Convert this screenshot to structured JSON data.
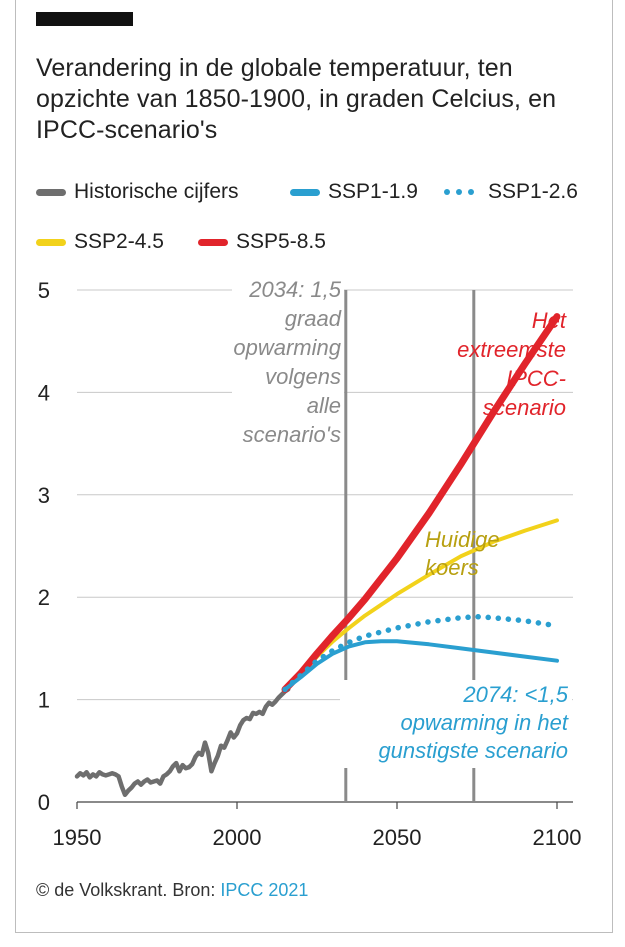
{
  "title": "Verandering in de globale temperatuur, ten opzichte van 1850-1900, in graden Celcius, en IPCC-scenario's",
  "legend": [
    {
      "label": "Historische cijfers",
      "color": "#6e6e6e",
      "style": "solid"
    },
    {
      "label": "SSP1-1.9",
      "color": "#2a9fd0",
      "style": "solid"
    },
    {
      "label": "SSP1-2.6",
      "color": "#2a9fd0",
      "style": "dotted"
    },
    {
      "label": "SSP2-4.5",
      "color": "#f2d21b",
      "style": "solid"
    },
    {
      "label": "SSP5-8.5",
      "color": "#e1242b",
      "style": "solid"
    }
  ],
  "annotations": {
    "a2034": [
      "2034: 1,5",
      "graad",
      "opwarming",
      "volgens",
      "alle",
      "scenario's"
    ],
    "extreme": [
      "Het",
      "extreemste",
      "IPCC-",
      "scenario"
    ],
    "current": [
      "Huidige",
      "koers"
    ],
    "a2074": [
      "2074: <1,5",
      "opwarming in het",
      "gunstigste scenario"
    ]
  },
  "source": {
    "prefix": "© de Volkskrant. Bron: ",
    "link": "IPCC 2021"
  },
  "chart_data": {
    "type": "line",
    "xlim": [
      1950,
      2100
    ],
    "ylim": [
      0,
      5
    ],
    "x_ticks": [
      "1950",
      "2000",
      "2050",
      "2100"
    ],
    "y_ticks": [
      "0",
      "1",
      "2",
      "3",
      "4",
      "5"
    ],
    "grid": "horizontal",
    "legend_position": "top",
    "vertical_markers": [
      2034,
      2074
    ],
    "series": [
      {
        "name": "Historische cijfers",
        "color": "#6e6e6e",
        "style": "solid",
        "points": [
          [
            1950,
            0.25
          ],
          [
            1951,
            0.28
          ],
          [
            1952,
            0.26
          ],
          [
            1953,
            0.29
          ],
          [
            1954,
            0.24
          ],
          [
            1955,
            0.27
          ],
          [
            1956,
            0.25
          ],
          [
            1957,
            0.29
          ],
          [
            1958,
            0.27
          ],
          [
            1959,
            0.26
          ],
          [
            1960,
            0.27
          ],
          [
            1961,
            0.28
          ],
          [
            1962,
            0.27
          ],
          [
            1963,
            0.25
          ],
          [
            1964,
            0.15
          ],
          [
            1965,
            0.07
          ],
          [
            1966,
            0.11
          ],
          [
            1967,
            0.14
          ],
          [
            1968,
            0.18
          ],
          [
            1969,
            0.2
          ],
          [
            1970,
            0.17
          ],
          [
            1971,
            0.2
          ],
          [
            1972,
            0.22
          ],
          [
            1973,
            0.19
          ],
          [
            1974,
            0.2
          ],
          [
            1975,
            0.21
          ],
          [
            1976,
            0.18
          ],
          [
            1977,
            0.25
          ],
          [
            1978,
            0.27
          ],
          [
            1979,
            0.3
          ],
          [
            1980,
            0.35
          ],
          [
            1981,
            0.38
          ],
          [
            1982,
            0.3
          ],
          [
            1983,
            0.36
          ],
          [
            1984,
            0.33
          ],
          [
            1985,
            0.34
          ],
          [
            1986,
            0.37
          ],
          [
            1987,
            0.44
          ],
          [
            1988,
            0.48
          ],
          [
            1989,
            0.46
          ],
          [
            1990,
            0.58
          ],
          [
            1991,
            0.48
          ],
          [
            1992,
            0.3
          ],
          [
            1993,
            0.38
          ],
          [
            1994,
            0.45
          ],
          [
            1995,
            0.55
          ],
          [
            1996,
            0.53
          ],
          [
            1997,
            0.6
          ],
          [
            1998,
            0.68
          ],
          [
            1999,
            0.63
          ],
          [
            2000,
            0.67
          ],
          [
            2001,
            0.75
          ],
          [
            2002,
            0.8
          ],
          [
            2003,
            0.82
          ],
          [
            2004,
            0.81
          ],
          [
            2005,
            0.87
          ],
          [
            2006,
            0.86
          ],
          [
            2007,
            0.88
          ],
          [
            2008,
            0.86
          ],
          [
            2009,
            0.93
          ],
          [
            2010,
            0.97
          ],
          [
            2011,
            0.95
          ],
          [
            2012,
            0.98
          ],
          [
            2013,
            1.02
          ],
          [
            2014,
            1.05
          ],
          [
            2015,
            1.08
          ],
          [
            2016,
            1.1
          ]
        ]
      },
      {
        "name": "SSP1-1.9",
        "color": "#2a9fd0",
        "style": "solid",
        "points": [
          [
            2015,
            1.1
          ],
          [
            2020,
            1.22
          ],
          [
            2025,
            1.35
          ],
          [
            2030,
            1.45
          ],
          [
            2035,
            1.52
          ],
          [
            2040,
            1.56
          ],
          [
            2045,
            1.57
          ],
          [
            2050,
            1.57
          ],
          [
            2060,
            1.54
          ],
          [
            2070,
            1.5
          ],
          [
            2080,
            1.46
          ],
          [
            2090,
            1.42
          ],
          [
            2100,
            1.38
          ]
        ]
      },
      {
        "name": "SSP1-2.6",
        "color": "#2a9fd0",
        "style": "dotted",
        "points": [
          [
            2015,
            1.1
          ],
          [
            2020,
            1.24
          ],
          [
            2025,
            1.38
          ],
          [
            2030,
            1.48
          ],
          [
            2035,
            1.56
          ],
          [
            2040,
            1.62
          ],
          [
            2050,
            1.7
          ],
          [
            2060,
            1.76
          ],
          [
            2070,
            1.8
          ],
          [
            2075,
            1.81
          ],
          [
            2080,
            1.8
          ],
          [
            2090,
            1.77
          ],
          [
            2100,
            1.72
          ]
        ]
      },
      {
        "name": "SSP2-4.5",
        "color": "#f2d21b",
        "style": "solid",
        "points": [
          [
            2015,
            1.1
          ],
          [
            2020,
            1.25
          ],
          [
            2025,
            1.42
          ],
          [
            2030,
            1.57
          ],
          [
            2035,
            1.7
          ],
          [
            2040,
            1.82
          ],
          [
            2050,
            2.03
          ],
          [
            2060,
            2.22
          ],
          [
            2070,
            2.4
          ],
          [
            2080,
            2.54
          ],
          [
            2090,
            2.65
          ],
          [
            2100,
            2.75
          ]
        ]
      },
      {
        "name": "SSP5-8.5",
        "color": "#e1242b",
        "style": "solid",
        "points": [
          [
            2015,
            1.1
          ],
          [
            2020,
            1.26
          ],
          [
            2025,
            1.45
          ],
          [
            2030,
            1.63
          ],
          [
            2035,
            1.8
          ],
          [
            2040,
            1.98
          ],
          [
            2050,
            2.38
          ],
          [
            2060,
            2.82
          ],
          [
            2070,
            3.3
          ],
          [
            2080,
            3.8
          ],
          [
            2090,
            4.28
          ],
          [
            2100,
            4.74
          ]
        ]
      }
    ]
  }
}
